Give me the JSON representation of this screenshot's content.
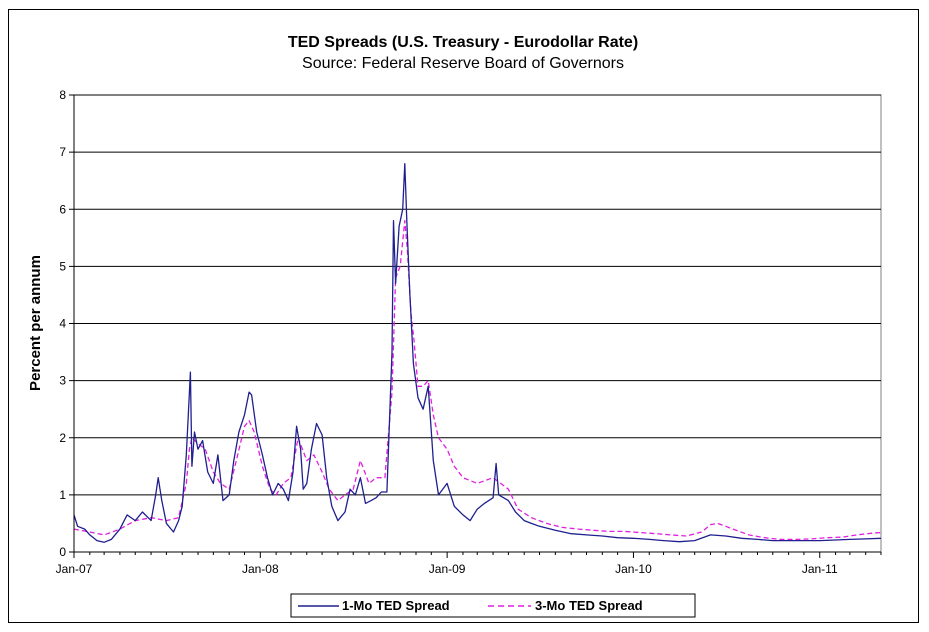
{
  "chart_data": {
    "type": "line",
    "title": "TED Spreads (U.S. Treasury - Eurodollar Rate)",
    "subtitle": "Source: Federal Reserve Board of Governors",
    "xlabel": "",
    "ylabel": "Percent per annum",
    "ylim": [
      0,
      8
    ],
    "yticks": [
      "0",
      "1",
      "2",
      "3",
      "4",
      "5",
      "6",
      "7",
      "8"
    ],
    "xlim": [
      "2007-01-01",
      "2011-05-01"
    ],
    "xticks": [
      {
        "label": "Jan-07",
        "date": "2007-01-01"
      },
      {
        "label": "Jan-08",
        "date": "2008-01-01"
      },
      {
        "label": "Jan-09",
        "date": "2009-01-01"
      },
      {
        "label": "Jan-10",
        "date": "2010-01-01"
      },
      {
        "label": "Jan-11",
        "date": "2011-01-01"
      }
    ],
    "grid": "horizontal",
    "legend": "bottom",
    "series": [
      {
        "name": "1-Mo TED Spread",
        "color": "#1f1f8f",
        "style": "solid",
        "points": [
          [
            "2007-01-01",
            0.65
          ],
          [
            "2007-01-08",
            0.45
          ],
          [
            "2007-01-22",
            0.4
          ],
          [
            "2007-02-01",
            0.3
          ],
          [
            "2007-02-15",
            0.2
          ],
          [
            "2007-03-01",
            0.17
          ],
          [
            "2007-03-15",
            0.22
          ],
          [
            "2007-04-01",
            0.4
          ],
          [
            "2007-04-15",
            0.65
          ],
          [
            "2007-05-01",
            0.55
          ],
          [
            "2007-05-15",
            0.7
          ],
          [
            "2007-06-01",
            0.55
          ],
          [
            "2007-06-10",
            1.0
          ],
          [
            "2007-06-15",
            1.3
          ],
          [
            "2007-06-22",
            0.9
          ],
          [
            "2007-07-01",
            0.5
          ],
          [
            "2007-07-15",
            0.35
          ],
          [
            "2007-07-25",
            0.55
          ],
          [
            "2007-08-01",
            0.8
          ],
          [
            "2007-08-09",
            1.7
          ],
          [
            "2007-08-13",
            2.4
          ],
          [
            "2007-08-17",
            3.15
          ],
          [
            "2007-08-20",
            1.5
          ],
          [
            "2007-08-25",
            2.1
          ],
          [
            "2007-09-01",
            1.8
          ],
          [
            "2007-09-10",
            1.95
          ],
          [
            "2007-09-20",
            1.4
          ],
          [
            "2007-10-01",
            1.2
          ],
          [
            "2007-10-10",
            1.7
          ],
          [
            "2007-10-20",
            0.9
          ],
          [
            "2007-11-01",
            1.0
          ],
          [
            "2007-11-10",
            1.6
          ],
          [
            "2007-11-20",
            2.1
          ],
          [
            "2007-12-01",
            2.4
          ],
          [
            "2007-12-10",
            2.8
          ],
          [
            "2007-12-15",
            2.75
          ],
          [
            "2007-12-25",
            2.1
          ],
          [
            "2008-01-05",
            1.7
          ],
          [
            "2008-01-15",
            1.3
          ],
          [
            "2008-01-25",
            1.0
          ],
          [
            "2008-02-05",
            1.2
          ],
          [
            "2008-02-15",
            1.1
          ],
          [
            "2008-02-25",
            0.9
          ],
          [
            "2008-03-05",
            1.4
          ],
          [
            "2008-03-12",
            2.2
          ],
          [
            "2008-03-20",
            1.8
          ],
          [
            "2008-03-25",
            1.1
          ],
          [
            "2008-04-01",
            1.2
          ],
          [
            "2008-04-10",
            1.8
          ],
          [
            "2008-04-20",
            2.25
          ],
          [
            "2008-05-01",
            2.05
          ],
          [
            "2008-05-10",
            1.3
          ],
          [
            "2008-05-20",
            0.8
          ],
          [
            "2008-06-01",
            0.55
          ],
          [
            "2008-06-15",
            0.7
          ],
          [
            "2008-06-25",
            1.1
          ],
          [
            "2008-07-05",
            1.0
          ],
          [
            "2008-07-15",
            1.3
          ],
          [
            "2008-07-25",
            0.85
          ],
          [
            "2008-08-05",
            0.9
          ],
          [
            "2008-08-15",
            0.95
          ],
          [
            "2008-08-25",
            1.05
          ],
          [
            "2008-09-05",
            1.05
          ],
          [
            "2008-09-15",
            3.5
          ],
          [
            "2008-09-18",
            5.8
          ],
          [
            "2008-09-22",
            4.7
          ],
          [
            "2008-09-29",
            5.7
          ],
          [
            "2008-10-06",
            6.0
          ],
          [
            "2008-10-10",
            6.8
          ],
          [
            "2008-10-14",
            5.8
          ],
          [
            "2008-10-20",
            4.5
          ],
          [
            "2008-10-27",
            3.3
          ],
          [
            "2008-11-05",
            2.7
          ],
          [
            "2008-11-15",
            2.5
          ],
          [
            "2008-11-25",
            2.9
          ],
          [
            "2008-12-05",
            1.6
          ],
          [
            "2008-12-15",
            1.0
          ],
          [
            "2009-01-01",
            1.2
          ],
          [
            "2009-01-15",
            0.8
          ],
          [
            "2009-02-01",
            0.65
          ],
          [
            "2009-02-15",
            0.55
          ],
          [
            "2009-03-01",
            0.75
          ],
          [
            "2009-03-15",
            0.85
          ],
          [
            "2009-04-01",
            0.95
          ],
          [
            "2009-04-07",
            1.55
          ],
          [
            "2009-04-12",
            1.0
          ],
          [
            "2009-05-01",
            0.9
          ],
          [
            "2009-05-15",
            0.7
          ],
          [
            "2009-06-01",
            0.55
          ],
          [
            "2009-06-15",
            0.5
          ],
          [
            "2009-07-01",
            0.45
          ],
          [
            "2009-08-01",
            0.38
          ],
          [
            "2009-09-01",
            0.32
          ],
          [
            "2009-10-01",
            0.3
          ],
          [
            "2009-11-01",
            0.28
          ],
          [
            "2009-12-01",
            0.25
          ],
          [
            "2010-01-01",
            0.24
          ],
          [
            "2010-02-01",
            0.22
          ],
          [
            "2010-03-01",
            0.2
          ],
          [
            "2010-04-01",
            0.18
          ],
          [
            "2010-05-01",
            0.2
          ],
          [
            "2010-06-01",
            0.3
          ],
          [
            "2010-07-01",
            0.28
          ],
          [
            "2010-08-01",
            0.24
          ],
          [
            "2010-09-01",
            0.22
          ],
          [
            "2010-10-01",
            0.2
          ],
          [
            "2010-11-01",
            0.2
          ],
          [
            "2010-12-01",
            0.2
          ],
          [
            "2011-01-01",
            0.2
          ],
          [
            "2011-02-01",
            0.21
          ],
          [
            "2011-03-01",
            0.22
          ],
          [
            "2011-04-01",
            0.23
          ],
          [
            "2011-05-01",
            0.24
          ]
        ]
      },
      {
        "name": "3-Mo TED Spread",
        "color": "#e020e0",
        "style": "dashed",
        "points": [
          [
            "2007-01-01",
            0.4
          ],
          [
            "2007-02-01",
            0.35
          ],
          [
            "2007-03-01",
            0.3
          ],
          [
            "2007-04-01",
            0.4
          ],
          [
            "2007-05-01",
            0.55
          ],
          [
            "2007-06-01",
            0.6
          ],
          [
            "2007-07-01",
            0.55
          ],
          [
            "2007-07-25",
            0.6
          ],
          [
            "2007-08-09",
            1.2
          ],
          [
            "2007-08-15",
            1.8
          ],
          [
            "2007-08-20",
            2.0
          ],
          [
            "2007-09-01",
            1.9
          ],
          [
            "2007-09-15",
            1.8
          ],
          [
            "2007-10-01",
            1.4
          ],
          [
            "2007-10-15",
            1.2
          ],
          [
            "2007-11-01",
            1.1
          ],
          [
            "2007-11-15",
            1.6
          ],
          [
            "2007-12-01",
            2.2
          ],
          [
            "2007-12-10",
            2.3
          ],
          [
            "2007-12-20",
            2.1
          ],
          [
            "2008-01-05",
            1.5
          ],
          [
            "2008-01-20",
            1.1
          ],
          [
            "2008-02-01",
            1.0
          ],
          [
            "2008-02-15",
            1.2
          ],
          [
            "2008-03-01",
            1.3
          ],
          [
            "2008-03-15",
            2.0
          ],
          [
            "2008-04-01",
            1.6
          ],
          [
            "2008-04-15",
            1.7
          ],
          [
            "2008-05-01",
            1.4
          ],
          [
            "2008-05-15",
            1.1
          ],
          [
            "2008-06-01",
            0.9
          ],
          [
            "2008-06-15",
            1.0
          ],
          [
            "2008-07-01",
            1.1
          ],
          [
            "2008-07-15",
            1.6
          ],
          [
            "2008-08-01",
            1.2
          ],
          [
            "2008-08-15",
            1.3
          ],
          [
            "2008-09-01",
            1.3
          ],
          [
            "2008-09-15",
            2.8
          ],
          [
            "2008-09-22",
            4.8
          ],
          [
            "2008-10-01",
            5.0
          ],
          [
            "2008-10-10",
            5.8
          ],
          [
            "2008-10-15",
            5.3
          ],
          [
            "2008-10-22",
            4.2
          ],
          [
            "2008-10-28",
            3.7
          ],
          [
            "2008-11-05",
            2.9
          ],
          [
            "2008-11-15",
            2.9
          ],
          [
            "2008-11-25",
            3.0
          ],
          [
            "2008-12-05",
            2.4
          ],
          [
            "2008-12-15",
            2.0
          ],
          [
            "2009-01-01",
            1.8
          ],
          [
            "2009-01-15",
            1.5
          ],
          [
            "2009-02-01",
            1.3
          ],
          [
            "2009-03-01",
            1.2
          ],
          [
            "2009-04-01",
            1.3
          ],
          [
            "2009-05-01",
            1.1
          ],
          [
            "2009-05-20",
            0.75
          ],
          [
            "2009-06-15",
            0.6
          ],
          [
            "2009-07-15",
            0.5
          ],
          [
            "2009-08-15",
            0.43
          ],
          [
            "2009-09-15",
            0.4
          ],
          [
            "2009-10-15",
            0.38
          ],
          [
            "2009-11-15",
            0.36
          ],
          [
            "2009-12-15",
            0.36
          ],
          [
            "2010-01-15",
            0.34
          ],
          [
            "2010-02-15",
            0.32
          ],
          [
            "2010-03-15",
            0.3
          ],
          [
            "2010-04-15",
            0.28
          ],
          [
            "2010-05-15",
            0.35
          ],
          [
            "2010-06-01",
            0.48
          ],
          [
            "2010-06-15",
            0.5
          ],
          [
            "2010-07-01",
            0.45
          ],
          [
            "2010-07-15",
            0.4
          ],
          [
            "2010-08-15",
            0.3
          ],
          [
            "2010-09-15",
            0.25
          ],
          [
            "2010-10-15",
            0.22
          ],
          [
            "2010-11-15",
            0.22
          ],
          [
            "2010-12-15",
            0.23
          ],
          [
            "2011-01-15",
            0.25
          ],
          [
            "2011-02-15",
            0.26
          ],
          [
            "2011-03-15",
            0.3
          ],
          [
            "2011-04-15",
            0.33
          ],
          [
            "2011-05-01",
            0.34
          ]
        ]
      }
    ]
  }
}
